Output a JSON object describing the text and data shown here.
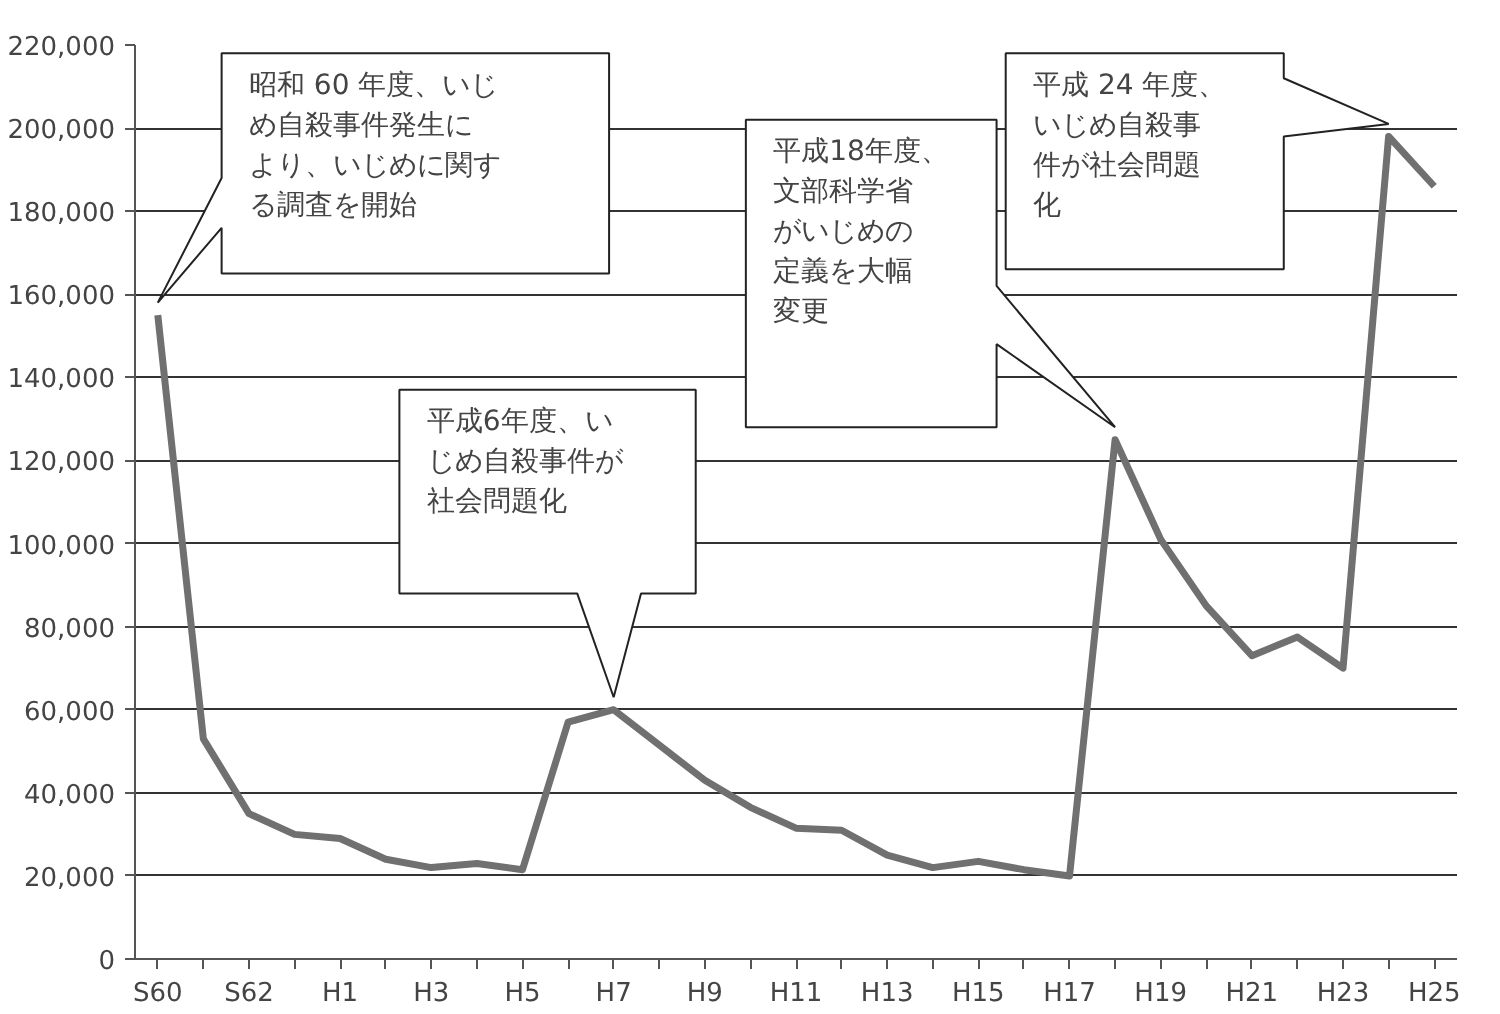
{
  "chart_data": {
    "type": "line",
    "categories": [
      "S60",
      null,
      "S62",
      null,
      "H1",
      null,
      "H3",
      null,
      "H5",
      null,
      "H7",
      null,
      "H9",
      null,
      "H11",
      null,
      "H13",
      null,
      "H15",
      null,
      "H17",
      null,
      "H19",
      null,
      "H21",
      null,
      "H23",
      null,
      "H25"
    ],
    "series": [
      {
        "color": "#707070",
        "values": [
          155000,
          53000,
          35000,
          30000,
          29000,
          24000,
          22000,
          23000,
          21500,
          57000,
          60000,
          51500,
          43000,
          36500,
          31500,
          31000,
          25000,
          22000,
          23500,
          21500,
          20000,
          125000,
          101000,
          85000,
          73000,
          77500,
          70000,
          198000,
          186000
        ]
      }
    ],
    "ylim": [
      0,
      220000
    ],
    "yticks": [
      0,
      {
        "value": 20000,
        "label": "20,000"
      },
      {
        "value": 40000,
        "label": "40,000"
      },
      {
        "value": 60000,
        "label": "60,000"
      },
      {
        "value": 80000,
        "label": "80,000"
      },
      {
        "value": 100000,
        "label": "100,000"
      },
      {
        "value": 120000,
        "label": "120,000"
      },
      {
        "value": 140000,
        "label": "140,000"
      },
      {
        "value": 160000,
        "label": "160,000"
      },
      {
        "value": 180000,
        "label": "180,000"
      },
      {
        "value": 200000,
        "label": "200,000"
      },
      {
        "value": 220000,
        "label": "220,000"
      }
    ],
    "grid": "y",
    "marker": "none",
    "line_style": "solid",
    "annotations": [
      "昭和 60 年度、いじめ自殺事件発生により、いじめに関する調査を開始",
      "平成6年度、いじめ自殺事件が社会問題化",
      "平成18年度、文部科学省がいじめの定義を大幅変更",
      "平成 24 年度、いじめ自殺事件が社会問題化"
    ]
  }
}
